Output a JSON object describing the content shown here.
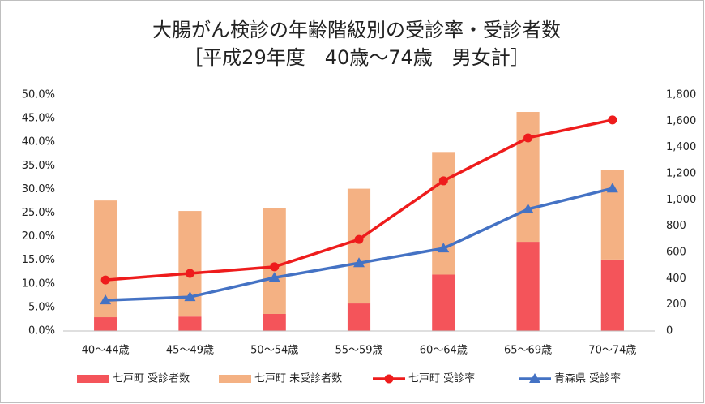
{
  "chart_data": {
    "type": "combo",
    "title": "大腸がん検診の年齢階級別の受診率・受診者数",
    "subtitle": "［平成29年度　40歳～74歳　男女計］",
    "categories": [
      "40～44歳",
      "45～49歳",
      "50～54歳",
      "55～59歳",
      "60～64歳",
      "65～69歳",
      "70～74歳"
    ],
    "series": [
      {
        "name": "七戸町 受診者数",
        "type": "bar",
        "axis": "y2",
        "color": "#f4545a",
        "values": [
          105,
          110,
          130,
          210,
          430,
          680,
          545
        ]
      },
      {
        "name": "七戸町 未受診者数",
        "type": "bar",
        "axis": "y2",
        "color": "#f4b183",
        "values": [
          890,
          805,
          810,
          875,
          935,
          990,
          680
        ]
      },
      {
        "name": "七戸町 受診率",
        "type": "line",
        "marker": "circle",
        "color": "#ee1c1c",
        "values": [
          10.8,
          12.2,
          13.6,
          19.4,
          31.8,
          40.9,
          44.7
        ]
      },
      {
        "name": "青森県 受診率",
        "type": "line",
        "marker": "triangle",
        "color": "#4472c4",
        "values": [
          6.5,
          7.2,
          11.3,
          14.4,
          17.5,
          25.8,
          30.2
        ]
      }
    ],
    "ylim": [
      0,
      50
    ],
    "yticks": [
      {
        "value": 0,
        "label": "0.0%"
      },
      {
        "value": 5,
        "label": "5.0%"
      },
      {
        "value": 10,
        "label": "10.0%"
      },
      {
        "value": 15,
        "label": "15.0%"
      },
      {
        "value": 20,
        "label": "20.0%"
      },
      {
        "value": 25,
        "label": "25.0%"
      },
      {
        "value": 30,
        "label": "30.0%"
      },
      {
        "value": 35,
        "label": "35.0%"
      },
      {
        "value": 40,
        "label": "40.0%"
      },
      {
        "value": 45,
        "label": "45.0%"
      },
      {
        "value": 50,
        "label": "50.0%"
      }
    ],
    "y2lim": [
      0,
      1800
    ],
    "y2ticks": [
      0,
      200,
      400,
      600,
      800,
      {
        "value": 1000,
        "label": "1,000"
      },
      {
        "value": 1200,
        "label": "1,200"
      },
      {
        "value": 1400,
        "label": "1,400"
      },
      {
        "value": 1600,
        "label": "1,600"
      },
      {
        "value": 1800,
        "label": "1,800"
      }
    ],
    "grid": false,
    "legend": "bottom"
  }
}
